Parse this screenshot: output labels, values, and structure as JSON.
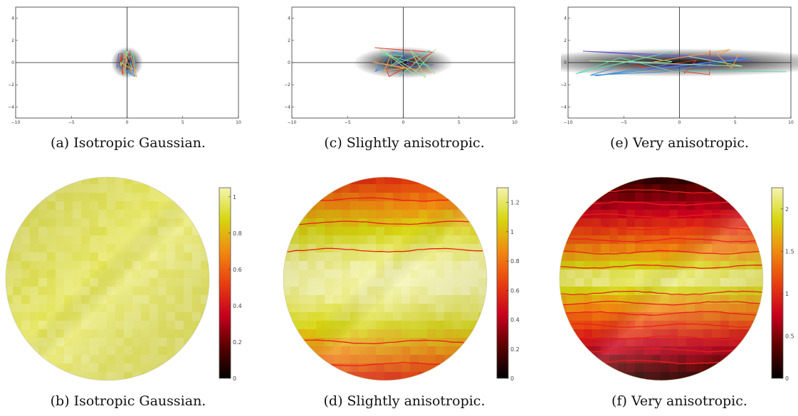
{
  "figures": [
    {
      "id": "a",
      "caption": "(a) Isotropic Gaussian.",
      "plot": {
        "xlim": [
          -10,
          10
        ],
        "ylim": [
          -5,
          5
        ],
        "xticks": [
          "−10",
          "−5",
          "0",
          "5",
          "10"
        ],
        "yticks": [
          "4",
          "2",
          "0",
          "−2",
          "−4"
        ],
        "blob_sigma": [
          0.9,
          0.9
        ]
      }
    },
    {
      "id": "c",
      "caption": "(c) Slightly anisotropic.",
      "plot": {
        "xlim": [
          -10,
          10
        ],
        "ylim": [
          -5,
          5
        ],
        "xticks": [
          "−10",
          "−5",
          "0",
          "5",
          "10"
        ],
        "yticks": [
          "4",
          "2",
          "0",
          "−2",
          "−4"
        ],
        "blob_sigma": [
          2.8,
          0.9
        ]
      }
    },
    {
      "id": "e",
      "caption": "(e) Very anisotropic.",
      "plot": {
        "xlim": [
          -10,
          10
        ],
        "ylim": [
          -5,
          5
        ],
        "xticks": [
          "−10",
          "−5",
          "0",
          "5",
          "10"
        ],
        "yticks": [
          "4",
          "2",
          "0",
          "−2",
          "−4"
        ],
        "blob_sigma": [
          9.0,
          0.8
        ]
      }
    },
    {
      "id": "b",
      "caption": "(b) Isotropic Gaussian.",
      "colorbar": {
        "max": 1.05,
        "ticks": [
          "1",
          "0.8",
          "0.6",
          "0.4",
          "0.2",
          "0"
        ],
        "tick_values": [
          1,
          0.8,
          0.6,
          0.4,
          0.2,
          0
        ]
      }
    },
    {
      "id": "d",
      "caption": "(d) Slightly anisotropic.",
      "colorbar": {
        "max": 1.3,
        "ticks": [
          "1.2",
          "1",
          "0.8",
          "0.6",
          "0.4",
          "0.2",
          "0"
        ],
        "tick_values": [
          1.2,
          1,
          0.8,
          0.6,
          0.4,
          0.2,
          0
        ]
      }
    },
    {
      "id": "f",
      "caption": "(f) Very anisotropic.",
      "colorbar": {
        "max": 2.25,
        "ticks": [
          "2",
          "1.5",
          "1",
          "0.5",
          "0"
        ],
        "tick_values": [
          2,
          1.5,
          1,
          0.5,
          0
        ]
      }
    }
  ],
  "colors": {
    "line_palette": [
      "#e8372b",
      "#6b5bd6",
      "#3a8fd8",
      "#5fd6b5",
      "#9fe39a",
      "#f0a050",
      "#8a2be2"
    ],
    "contour": "#e8201a",
    "colormap": [
      "#000000",
      "#5a0000",
      "#c8001e",
      "#e84010",
      "#f08a10",
      "#d6d610",
      "#f4f4b0"
    ]
  }
}
